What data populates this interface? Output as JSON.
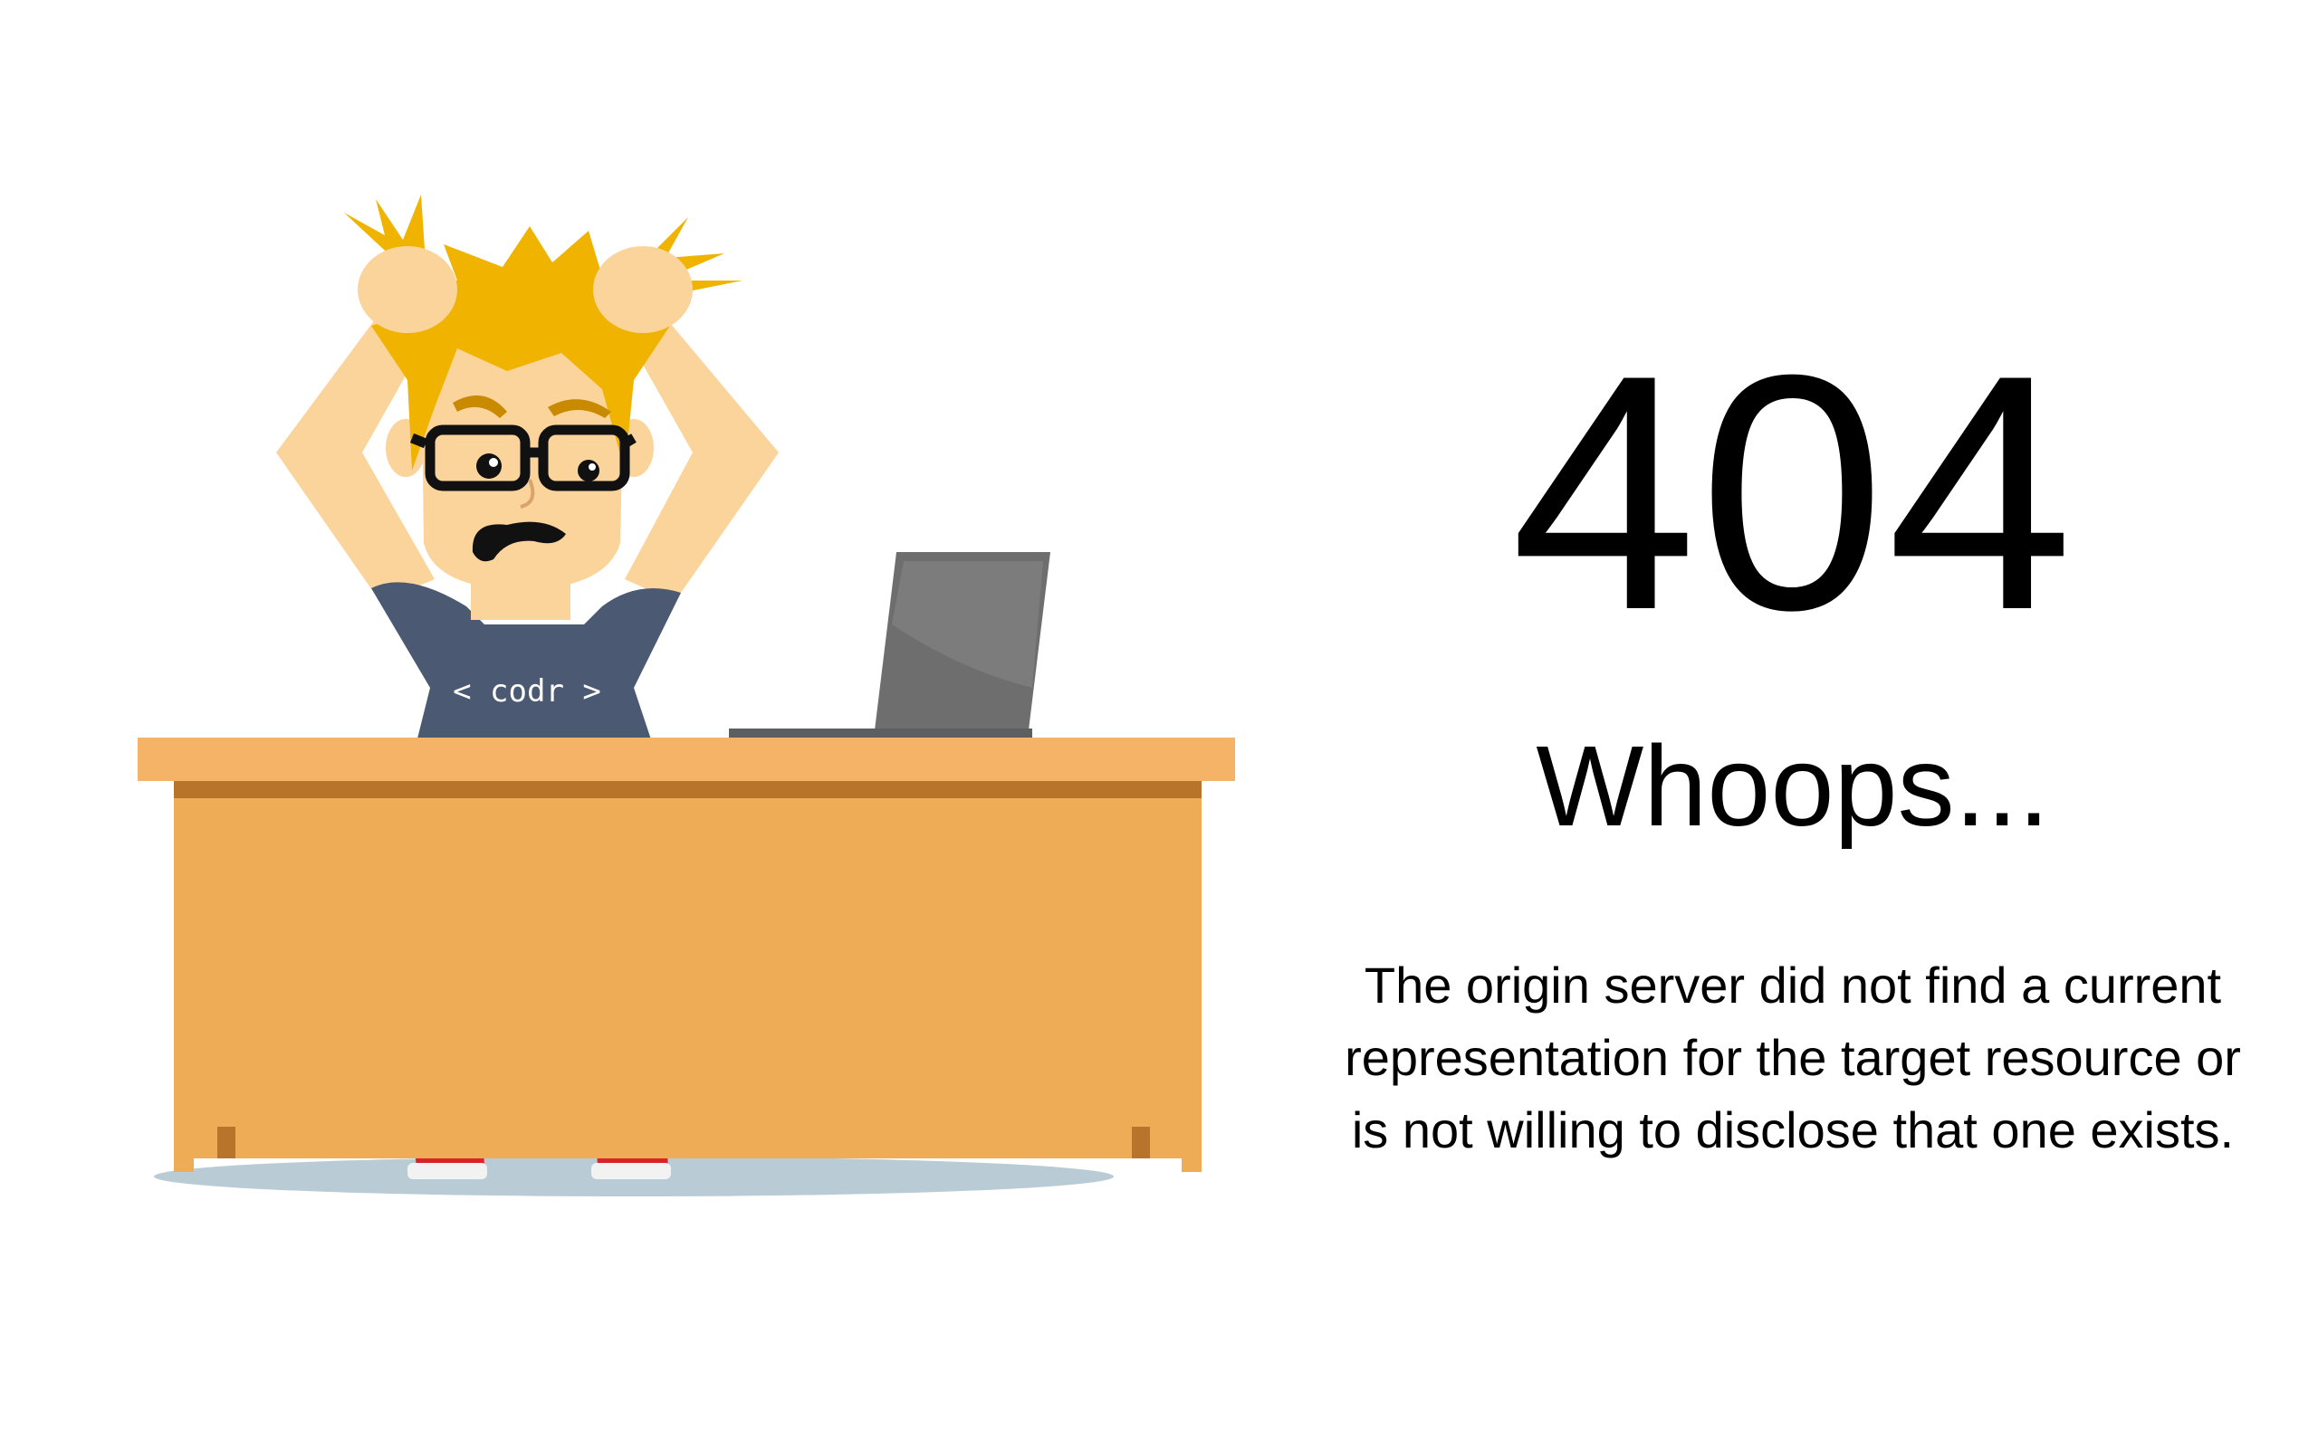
{
  "illustration": {
    "shirt_text": "< codr >",
    "colors": {
      "hair": "#f0b400",
      "skin": "#fbd49c",
      "shirt": "#4b5a72",
      "desk_top": "#f5b368",
      "desk_body": "#efac57",
      "desk_trim": "#b9742c",
      "laptop": "#6e6e6e",
      "shoes": "#d8232a",
      "shadow": "#b9cbd4",
      "glasses": "#111111"
    }
  },
  "message": {
    "code": "404",
    "headline": "Whoops...",
    "description": "The origin server did not find a current representation for the target resource or is not willing to disclose that one exists."
  }
}
